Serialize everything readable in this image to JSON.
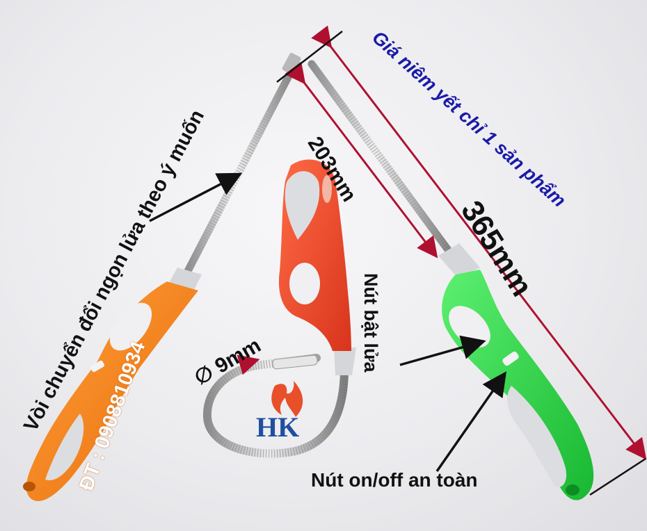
{
  "labels": {
    "price_note": "Giá niêm yết chỉ 1 sản phẩm",
    "nozzle_note": "Vòi chuyển đổi ngọn lửa theo ý muốn",
    "phone": "ĐT : 0908810934",
    "length_short": "203mm",
    "length_long": "365mm",
    "ignite_button": "Nút bật lửa",
    "diameter": "∅ 9mm",
    "safety_switch": "Nút on/off an toàn"
  },
  "logo": {
    "text": "HK"
  },
  "colors": {
    "orange_lighter": "#f5821f",
    "red_lighter": "#e8442a",
    "green_lighter": "#2fd94a",
    "grip_grey": "#dcdde1",
    "annotation_text": "#111111",
    "dimension_arrow": "#b01030",
    "price_text": "#1a1aa8",
    "logo_blue": "#1f4fa0",
    "logo_flame": "#e8502a"
  }
}
